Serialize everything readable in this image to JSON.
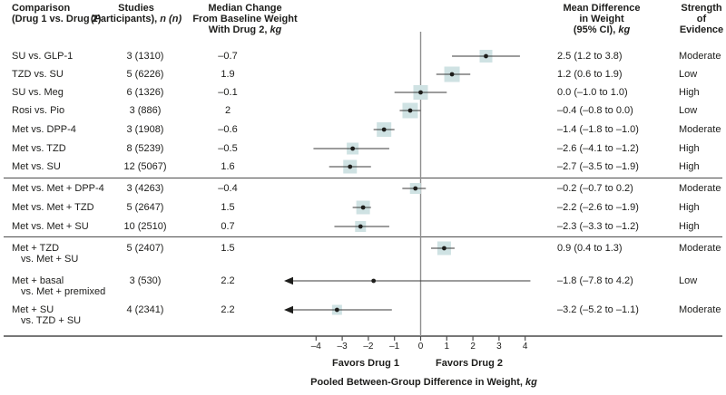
{
  "figure": {
    "headers": {
      "comparison": {
        "line1": "Comparison",
        "line2": "(Drug 1 vs. Drug 2)"
      },
      "studies": {
        "line1": "Studies",
        "line2_text": "(Participants), ",
        "line2_italic": "n (n)"
      },
      "median": {
        "line1": "Median Change",
        "line2": "From Baseline Weight",
        "line3_text": "With Drug 2, ",
        "line3_italic": "kg"
      },
      "mean_diff": {
        "line1": "Mean Difference",
        "line2": "in Weight",
        "line3_text": "(95% CI), ",
        "line3_italic": "kg"
      },
      "strength": {
        "line1": "Strength",
        "line2": "of",
        "line3": "Evidence"
      }
    },
    "footer": {
      "favors_left": "Favors Drug 1",
      "favors_right": "Favors Drug 2",
      "xlabel_text": "Pooled Between-Group Difference in Weight, ",
      "xlabel_italic": "kg"
    },
    "colors": {
      "weight_box": "#cfe2e3",
      "dot": "#1d1d1b",
      "ci_line": "#3a3a3a",
      "zero_line": "#8f8f8f",
      "rule": "#4c4c4c",
      "text": "#1d1d1b"
    }
  },
  "chart_data": {
    "type": "forest",
    "x_axis": {
      "min": -4,
      "max": 4,
      "tick_step": 1,
      "tick_labels": [
        "–4",
        "–3",
        "–2",
        "–1",
        "0",
        "1",
        "2",
        "3",
        "4"
      ],
      "label": "Pooled Between-Group Difference in Weight, kg",
      "favors_left": "Favors Drug 1",
      "favors_right": "Favors Drug 2"
    },
    "divider_after_rows": [
      6,
      9
    ],
    "rows": [
      {
        "comparison": "SU vs. GLP-1",
        "comparison_line2": "",
        "studies": "3 (1310)",
        "median_change": "–0.7",
        "mean_diff_ci": "2.5 (1.2 to 3.8)",
        "strength": "Moderate",
        "estimate": 2.5,
        "ci_low": 1.2,
        "ci_high": 3.8,
        "box_size": 14,
        "arrow_left": false
      },
      {
        "comparison": "TZD vs. SU",
        "comparison_line2": "",
        "studies": "5 (6226)",
        "median_change": "1.9",
        "mean_diff_ci": "1.2 (0.6 to 1.9)",
        "strength": "Low",
        "estimate": 1.2,
        "ci_low": 0.6,
        "ci_high": 1.9,
        "box_size": 17,
        "arrow_left": false
      },
      {
        "comparison": "SU vs. Meg",
        "comparison_line2": "",
        "studies": "6 (1326)",
        "median_change": "–0.1",
        "mean_diff_ci": "0.0 (–1.0 to 1.0)",
        "strength": "High",
        "estimate": 0.0,
        "ci_low": -1.0,
        "ci_high": 1.0,
        "box_size": 16,
        "arrow_left": false
      },
      {
        "comparison": "Rosi vs. Pio",
        "comparison_line2": "",
        "studies": "3 (886)",
        "median_change": "2",
        "mean_diff_ci": "–0.4 (–0.8 to 0.0)",
        "strength": "Low",
        "estimate": -0.4,
        "ci_low": -0.8,
        "ci_high": 0.0,
        "box_size": 17,
        "arrow_left": false
      },
      {
        "comparison": "Met vs. DPP-4",
        "comparison_line2": "",
        "studies": "3 (1908)",
        "median_change": "–0.6",
        "mean_diff_ci": "–1.4 (–1.8 to –1.0)",
        "strength": "Moderate",
        "estimate": -1.4,
        "ci_low": -1.8,
        "ci_high": -1.0,
        "box_size": 16,
        "arrow_left": false
      },
      {
        "comparison": "Met vs. TZD",
        "comparison_line2": "",
        "studies": "8 (5239)",
        "median_change": "–0.5",
        "mean_diff_ci": "–2.6 (–4.1 to –1.2)",
        "strength": "High",
        "estimate": -2.6,
        "ci_low": -4.1,
        "ci_high": -1.2,
        "box_size": 13,
        "arrow_left": false
      },
      {
        "comparison": "Met vs. SU",
        "comparison_line2": "",
        "studies": "12 (5067)",
        "median_change": "1.6",
        "mean_diff_ci": "–2.7 (–3.5 to –1.9)",
        "strength": "High",
        "estimate": -2.7,
        "ci_low": -3.5,
        "ci_high": -1.9,
        "box_size": 15,
        "arrow_left": false
      },
      {
        "comparison": "Met vs. Met + DPP-4",
        "comparison_line2": "",
        "studies": "3 (4263)",
        "median_change": "–0.4",
        "mean_diff_ci": "–0.2 (–0.7 to 0.2)",
        "strength": "Moderate",
        "estimate": -0.2,
        "ci_low": -0.7,
        "ci_high": 0.2,
        "box_size": 12,
        "arrow_left": false
      },
      {
        "comparison": "Met vs. Met + TZD",
        "comparison_line2": "",
        "studies": "5 (2647)",
        "median_change": "1.5",
        "mean_diff_ci": "–2.2 (–2.6 to –1.9)",
        "strength": "High",
        "estimate": -2.2,
        "ci_low": -2.6,
        "ci_high": -1.9,
        "box_size": 15,
        "arrow_left": false
      },
      {
        "comparison": "Met vs. Met + SU",
        "comparison_line2": "",
        "studies": "10 (2510)",
        "median_change": "0.7",
        "mean_diff_ci": "–2.3 (–3.3 to –1.2)",
        "strength": "High",
        "estimate": -2.3,
        "ci_low": -3.3,
        "ci_high": -1.2,
        "box_size": 12,
        "arrow_left": false
      },
      {
        "comparison": "Met + TZD",
        "comparison_line2": "vs. Met + SU",
        "studies": "5 (2407)",
        "median_change": "1.5",
        "mean_diff_ci": "0.9 (0.4 to 1.3)",
        "strength": "Moderate",
        "estimate": 0.9,
        "ci_low": 0.4,
        "ci_high": 1.3,
        "box_size": 15,
        "arrow_left": false
      },
      {
        "comparison": "Met + basal",
        "comparison_line2": "vs. Met + premixed",
        "studies": "3 (530)",
        "median_change": "2.2",
        "mean_diff_ci": "–1.8 (–7.8 to 4.2)",
        "strength": "Low",
        "estimate": -1.8,
        "ci_low": -7.8,
        "ci_high": 4.2,
        "box_size": 0,
        "arrow_left": true
      },
      {
        "comparison": "Met + SU",
        "comparison_line2": "vs. TZD + SU",
        "studies": "4 (2341)",
        "median_change": "2.2",
        "mean_diff_ci": "–3.2 (–5.2 to –1.1)",
        "strength": "Moderate",
        "estimate": -3.2,
        "ci_low": -5.2,
        "ci_high": -1.1,
        "box_size": 11,
        "arrow_left": true
      }
    ]
  }
}
